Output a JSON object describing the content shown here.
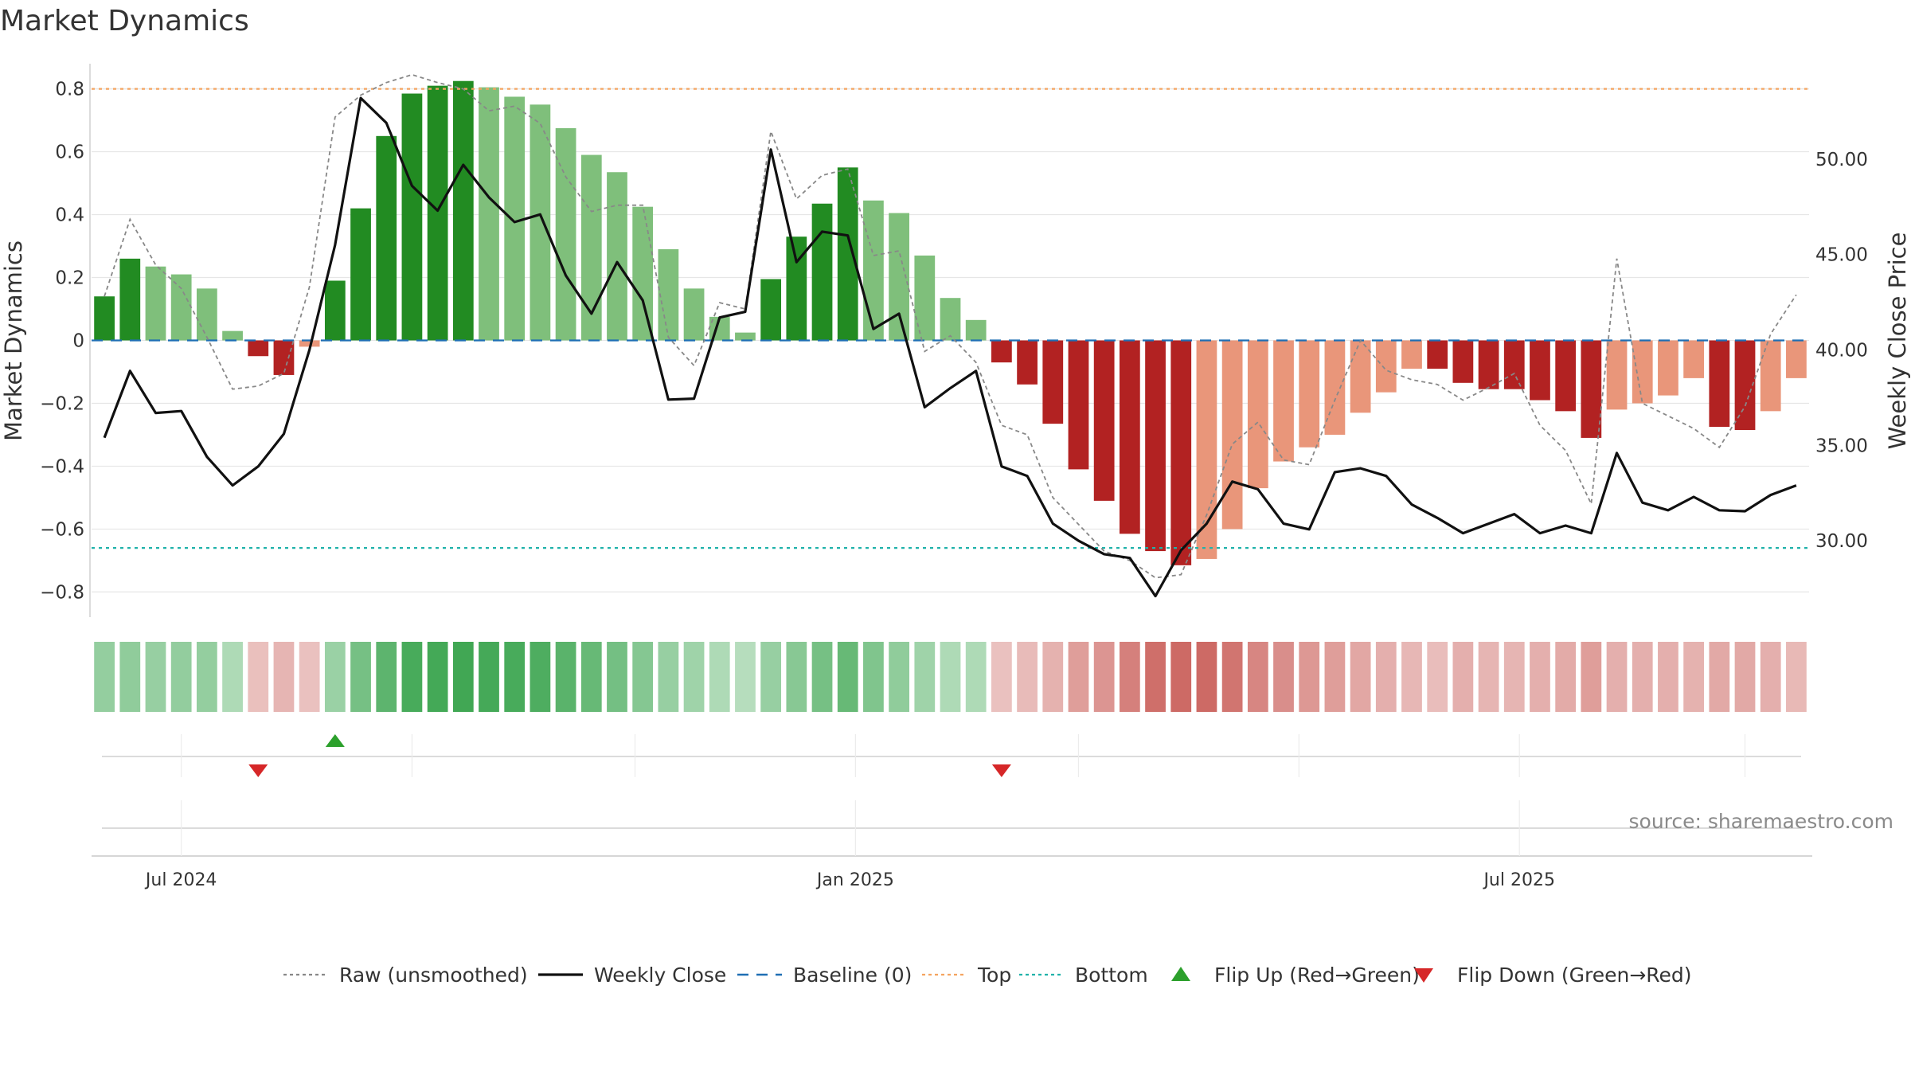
{
  "chart_data": {
    "type": "bar",
    "title": "Market Dynamics",
    "ylabel": "Market Dynamics",
    "y2label": "Weekly Close Price",
    "ylim": [
      -0.88,
      0.88
    ],
    "y2lim": [
      26.0,
      55.0
    ],
    "yticks": [
      {
        "v": 0.8,
        "label": "0.8"
      },
      {
        "v": 0.6,
        "label": "0.6"
      },
      {
        "v": 0.4,
        "label": "0.4"
      },
      {
        "v": 0.2,
        "label": "0.2"
      },
      {
        "v": 0,
        "label": "0"
      },
      {
        "v": -0.2,
        "label": "−0.2"
      },
      {
        "v": -0.4,
        "label": "−0.4"
      },
      {
        "v": -0.6,
        "label": "−0.6"
      },
      {
        "v": -0.8,
        "label": "−0.8"
      }
    ],
    "y2ticks": [
      {
        "v": 50,
        "label": "50.00"
      },
      {
        "v": 45,
        "label": "45.00"
      },
      {
        "v": 40,
        "label": "40.00"
      },
      {
        "v": 35,
        "label": "35.00"
      },
      {
        "v": 30,
        "label": "30.00"
      }
    ],
    "x_ticks": [
      {
        "index": 3.0,
        "label": "Jul 2024"
      },
      {
        "index": 29.3,
        "label": "Jan 2025"
      },
      {
        "index": 55.2,
        "label": "Jul 2025"
      }
    ],
    "weeks": 67,
    "momentum": [
      0.14,
      0.26,
      0.235,
      0.21,
      0.165,
      0.03,
      -0.05,
      -0.11,
      -0.02,
      0.19,
      0.42,
      0.65,
      0.785,
      0.81,
      0.825,
      0.805,
      0.775,
      0.75,
      0.675,
      0.59,
      0.535,
      0.425,
      0.29,
      0.165,
      0.075,
      0.025,
      0.195,
      0.33,
      0.435,
      0.55,
      0.445,
      0.405,
      0.27,
      0.135,
      0.065,
      -0.07,
      -0.14,
      -0.265,
      -0.41,
      -0.51,
      -0.615,
      -0.67,
      -0.715,
      -0.695,
      -0.6,
      -0.47,
      -0.385,
      -0.34,
      -0.3,
      -0.23,
      -0.165,
      -0.09,
      -0.09,
      -0.135,
      -0.155,
      -0.155,
      -0.19,
      -0.225,
      -0.31,
      -0.22,
      -0.2,
      -0.175,
      -0.12,
      -0.275,
      -0.285,
      -0.225,
      -0.12
    ],
    "raw": [
      0.14,
      0.385,
      0.24,
      0.165,
      0.01,
      -0.155,
      -0.145,
      -0.105,
      0.17,
      0.71,
      0.78,
      0.82,
      0.845,
      0.82,
      0.8,
      0.73,
      0.745,
      0.69,
      0.52,
      0.41,
      0.43,
      0.43,
      0.01,
      -0.08,
      0.12,
      0.1,
      0.665,
      0.45,
      0.525,
      0.545,
      0.27,
      0.285,
      -0.035,
      0.015,
      -0.07,
      -0.27,
      -0.3,
      -0.5,
      -0.585,
      -0.67,
      -0.7,
      -0.755,
      -0.745,
      -0.555,
      -0.33,
      -0.26,
      -0.38,
      -0.395,
      -0.19,
      0.0,
      -0.095,
      -0.125,
      -0.14,
      -0.19,
      -0.15,
      -0.105,
      -0.27,
      -0.35,
      -0.52,
      0.26,
      -0.2,
      -0.24,
      -0.28,
      -0.34,
      -0.21,
      0.02,
      0.145
    ],
    "close": [
      35.4,
      38.9,
      36.7,
      36.8,
      34.4,
      32.9,
      33.9,
      35.6,
      40.0,
      45.5,
      53.2,
      51.9,
      48.6,
      47.3,
      49.7,
      48.0,
      46.7,
      47.1,
      43.9,
      41.9,
      44.6,
      42.6,
      37.4,
      37.45,
      41.7,
      42.0,
      50.5,
      44.6,
      46.2,
      46.0,
      41.1,
      41.9,
      37.0,
      38.0,
      38.9,
      33.9,
      33.4,
      30.9,
      30.0,
      29.3,
      29.1,
      27.1,
      29.5,
      30.9,
      33.1,
      32.7,
      30.9,
      30.6,
      33.6,
      33.8,
      33.4,
      31.9,
      31.2,
      30.4,
      30.9,
      31.4,
      30.4,
      30.8,
      30.4,
      34.6,
      32.0,
      31.6,
      32.3,
      31.6,
      31.55,
      32.4,
      32.9
    ],
    "strength_pct": [
      42,
      45,
      40,
      43,
      42,
      25,
      26,
      35,
      25,
      38,
      62,
      78,
      92,
      95,
      97,
      94,
      92,
      88,
      80,
      72,
      63,
      52,
      40,
      35,
      25,
      20,
      40,
      50,
      62,
      72,
      55,
      45,
      35,
      25,
      25,
      25,
      30,
      38,
      55,
      62,
      80,
      95,
      99,
      99,
      90,
      75,
      68,
      60,
      55,
      47,
      40,
      33,
      28,
      40,
      35,
      35,
      40,
      44,
      55,
      40,
      40,
      40,
      38,
      45,
      45,
      40,
      32
    ],
    "flips": [
      {
        "index": 6.0,
        "direction": "down"
      },
      {
        "index": 9.0,
        "direction": "up"
      },
      {
        "index": 35.0,
        "direction": "down"
      }
    ],
    "levels": {
      "top": 0.8,
      "bottom": -0.66,
      "baseline": 0
    },
    "colors": {
      "strong_up": "#228b22",
      "weak_up": "#7fbf7b",
      "strong_down": "#b22222",
      "weak_down": "#e9967a",
      "raw": "#888888",
      "close": "#111111",
      "baseline": "#1f6fb4",
      "top": "#f4a460",
      "bottom": "#20b2aa",
      "flip_up": "#2ca02c",
      "flip_down": "#d62728"
    },
    "legend": [
      {
        "key": "raw",
        "label": "Raw (unsmoothed)",
        "style": "dotted-line"
      },
      {
        "key": "close",
        "label": "Weekly Close",
        "style": "solid-line"
      },
      {
        "key": "baseline",
        "label": "Baseline (0)",
        "style": "dashed-line"
      },
      {
        "key": "top",
        "label": "Top",
        "style": "dotted-line"
      },
      {
        "key": "bottom",
        "label": "Bottom",
        "style": "dotted-line"
      },
      {
        "key": "flip_up",
        "label": "Flip Up (Red→Green)",
        "style": "triangle-up"
      },
      {
        "key": "flip_down",
        "label": "Flip Down (Green→Red)",
        "style": "triangle-down"
      }
    ],
    "legend_position": "bottom-center",
    "grid": true,
    "source": "source: sharemaestro.com"
  }
}
